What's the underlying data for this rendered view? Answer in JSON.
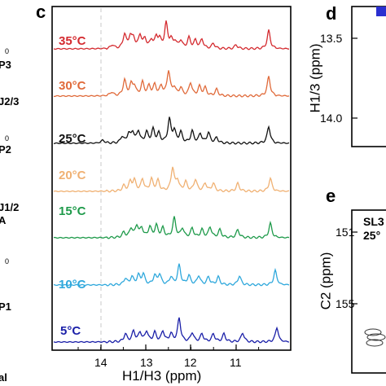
{
  "left_cutoff_labels": [
    "P3",
    "J2/3",
    "P2",
    "J1/2",
    "A",
    "P1",
    "al"
  ],
  "left_cutoff_small": [
    "0",
    "0",
    "0"
  ],
  "panel_c": {
    "letter": "c",
    "xlabel": "H1/H3 (ppm)",
    "xticks": [
      "14",
      "13",
      "12",
      "11"
    ],
    "spectra": [
      {
        "label": "35°C",
        "color": "#d42a2f"
      },
      {
        "label": "30°C",
        "color": "#e06a3a"
      },
      {
        "label": "25°C",
        "color": "#111111"
      },
      {
        "label": "20°C",
        "color": "#f0b173"
      },
      {
        "label": "15°C",
        "color": "#1e9a4a"
      },
      {
        "label": "10°C",
        "color": "#2fa8dc"
      },
      {
        "label": "5°C",
        "color": "#1a1fa8"
      }
    ]
  },
  "panel_d": {
    "letter": "d",
    "ylabel": "H1/3 (ppm)",
    "yticks": [
      "13.5",
      "14.0"
    ]
  },
  "panel_e": {
    "letter": "e",
    "ylabel": "C2 (ppm)",
    "yticks": [
      "151",
      "155"
    ],
    "box_text_1": "SL3",
    "box_text_2": "25°"
  }
}
